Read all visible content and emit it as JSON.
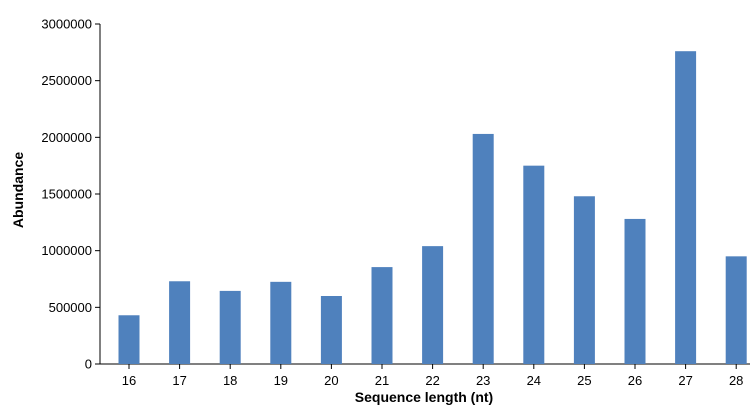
{
  "chart_data": {
    "type": "bar",
    "title": "",
    "xlabel": "Sequence length (nt)",
    "ylabel": "Abundance",
    "categories": [
      "16",
      "17",
      "18",
      "19",
      "20",
      "21",
      "22",
      "23",
      "24",
      "25",
      "26",
      "27",
      "28"
    ],
    "values": [
      430000,
      730000,
      645000,
      725000,
      600000,
      855000,
      1040000,
      2030000,
      1750000,
      1480000,
      1280000,
      2760000,
      950000
    ],
    "ylim": [
      0,
      3000000
    ],
    "yticks": [
      "0",
      "500000",
      "1000000",
      "1500000",
      "2000000",
      "2500000",
      "3000000"
    ],
    "grid": false,
    "legend": "none",
    "bar_color": "#4f81bd"
  }
}
